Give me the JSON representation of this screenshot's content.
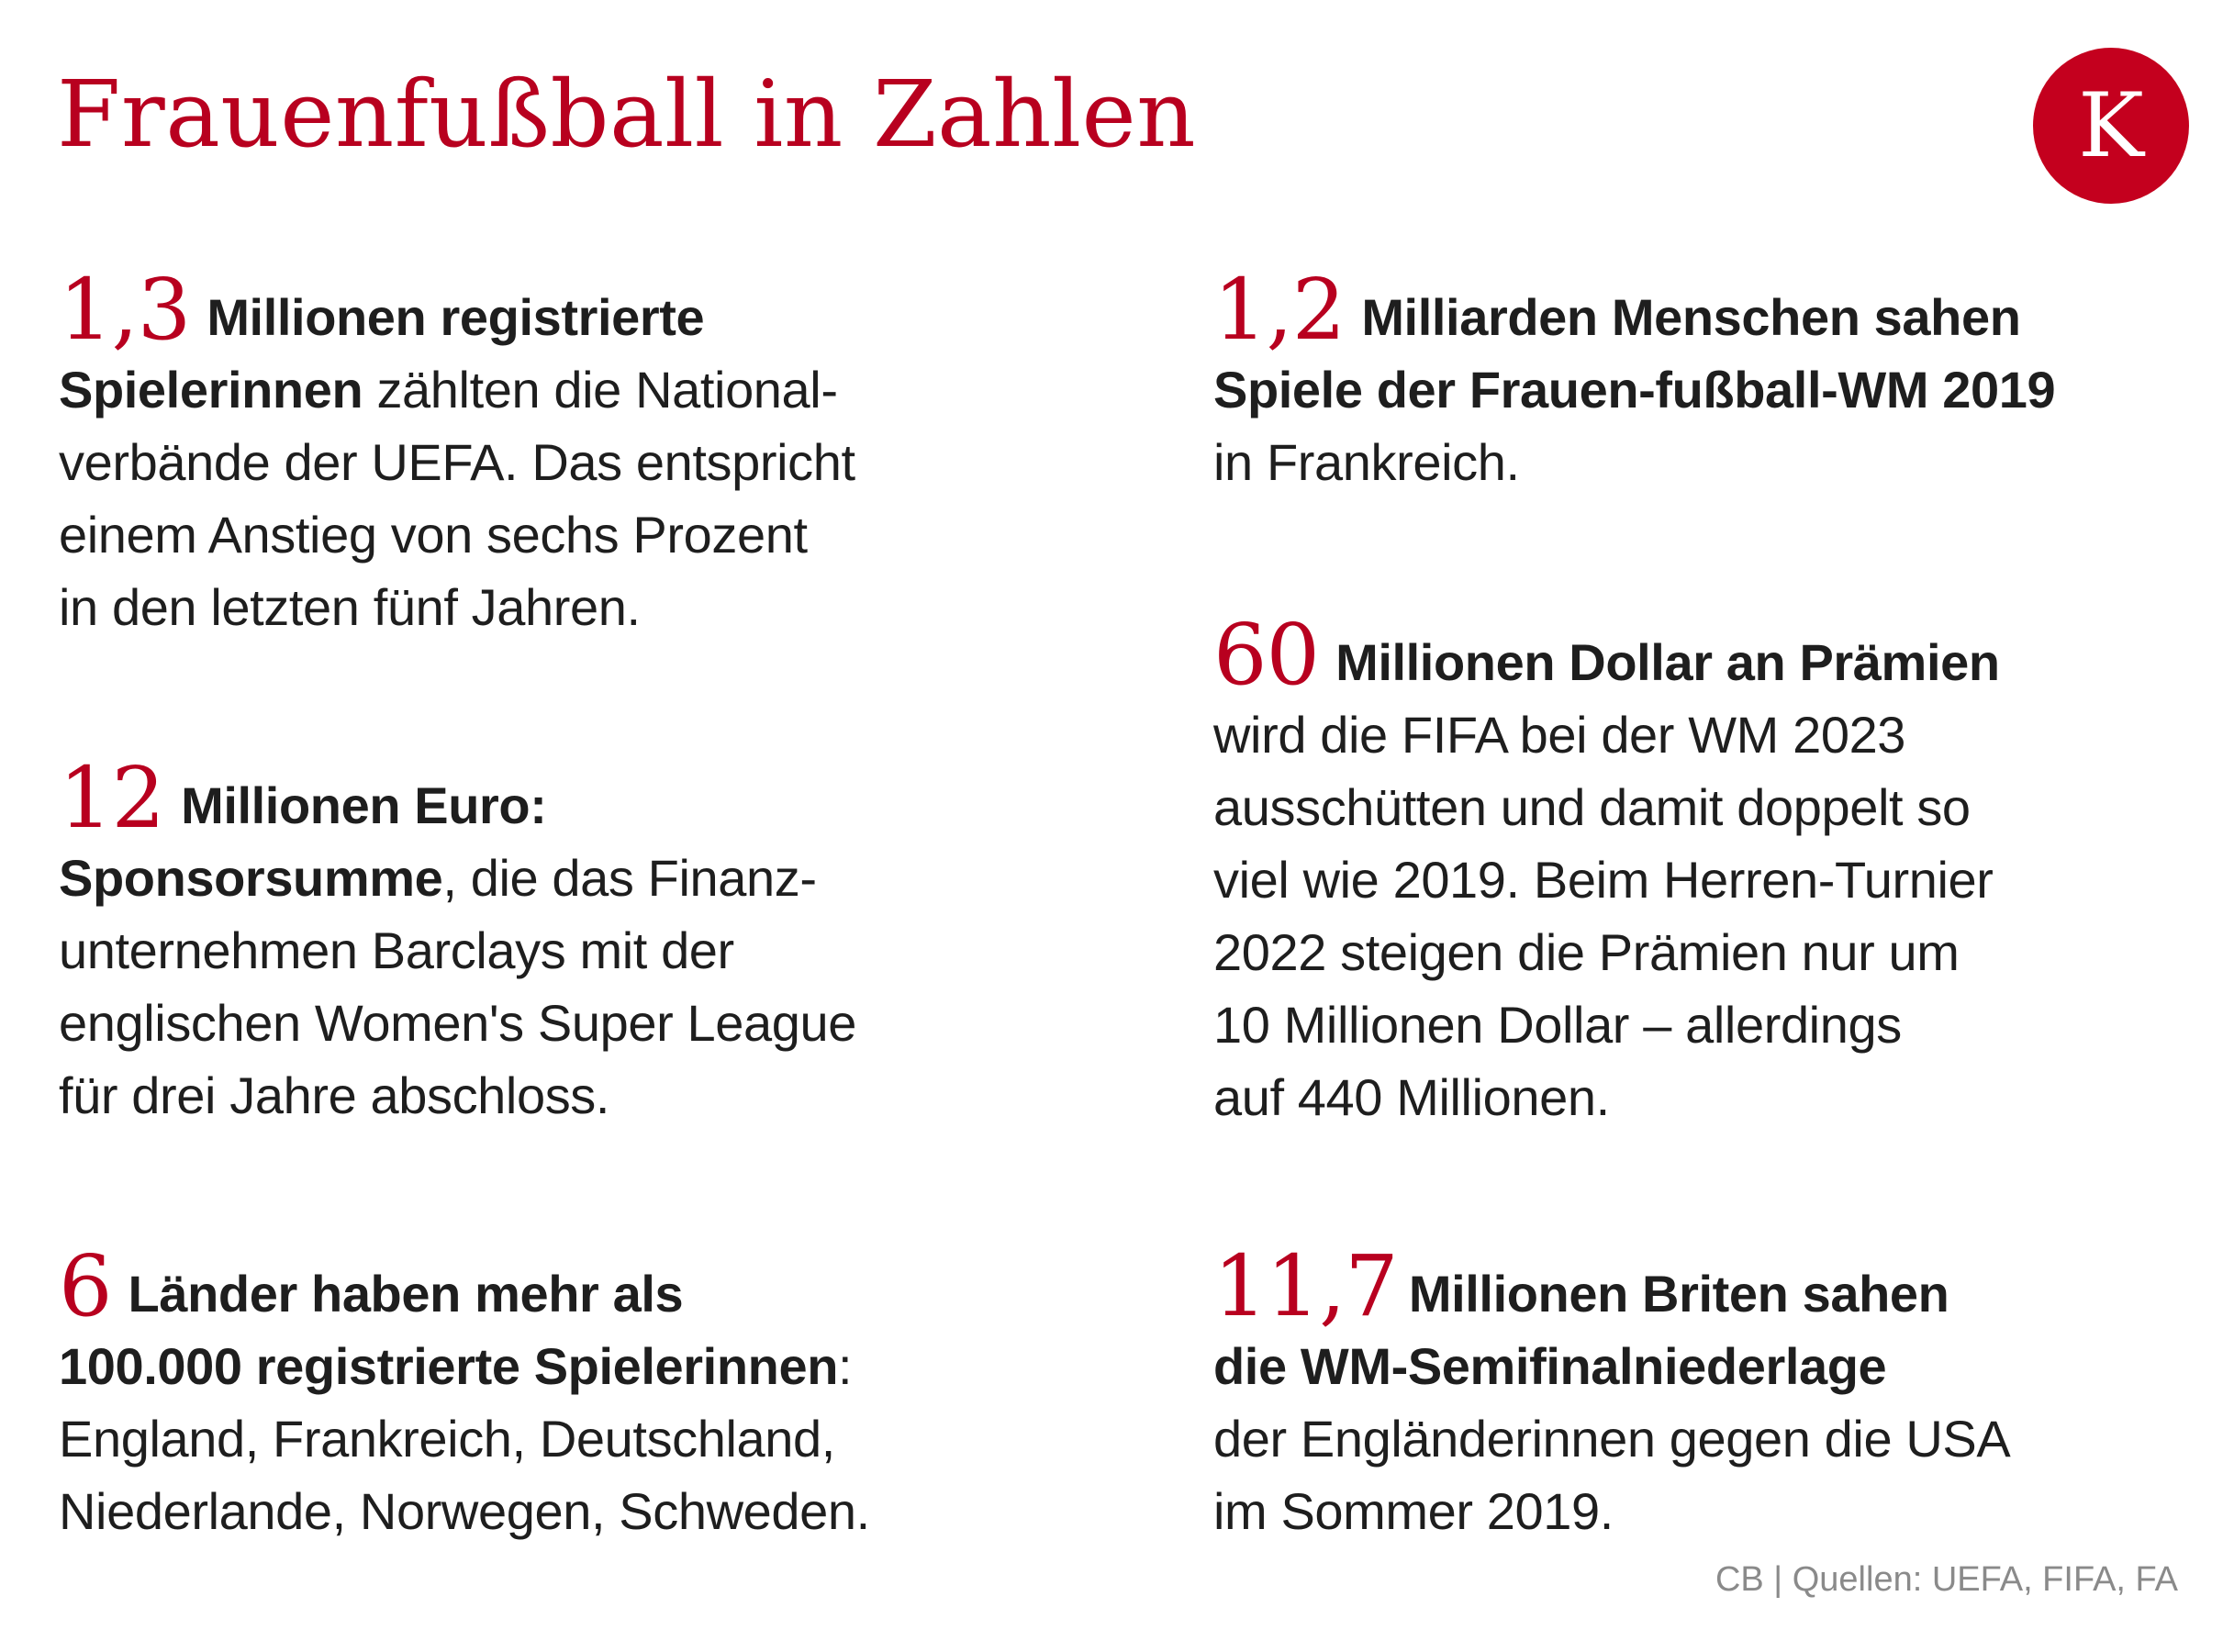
{
  "title": "Frauenfußball in Zahlen",
  "logo": {
    "letter": "K",
    "color": "#c4001e"
  },
  "accent_color": "#b8001f",
  "facts": [
    {
      "number": "1,3",
      "bold": "Millionen registrierte Spielerinnen",
      "line1": "Millionen registrierte",
      "line2_bold": "Spielerinnen",
      "line2_rest": " zählten die National-",
      "line3": "verbände der UEFA. Das entspricht",
      "line4": "einem Anstieg von sechs Prozent",
      "line5": "in den letzten fünf Jahren."
    },
    {
      "number": "12",
      "line1": "Millionen Euro:",
      "line2_bold": "Sponsorsumme",
      "line2_rest": ", die das Finanz-",
      "line3": "unternehmen Barclays mit der",
      "line4": "englischen Women's Super League",
      "line5": "für drei Jahre abschloss."
    },
    {
      "number": "6",
      "line1": "Länder haben mehr als",
      "line2_bold": "100.000 registrierte Spielerinnen",
      "line2_rest": ":",
      "line3": "England, Frankreich, Deutschland,",
      "line4": "Niederlande, Norwegen, Schweden."
    },
    {
      "number": "1,2",
      "line1": "Milliarden Menschen sahen",
      "line2_bold": "Spiele der Frauen-fußball-WM 2019",
      "line3": "in Frankreich."
    },
    {
      "number": "60",
      "line1": "Millionen Dollar an Prämien",
      "line2": "wird die FIFA bei der WM 2023",
      "line3": "ausschütten und damit doppelt so",
      "line4": "viel wie 2019. Beim Herren-Turnier",
      "line5": "2022 steigen die Prämien nur um",
      "line6": "10 Millionen Dollar – allerdings",
      "line7": "auf 440 Millionen."
    },
    {
      "number": "11,7",
      "line1": "Millionen Briten sahen",
      "line2_bold": "die WM-Semifinalniederlage",
      "line3": "der Engländerinnen gegen die USA",
      "line4": "im Sommer 2019."
    }
  ],
  "source": "CB | Quellen: UEFA, FIFA, FA"
}
